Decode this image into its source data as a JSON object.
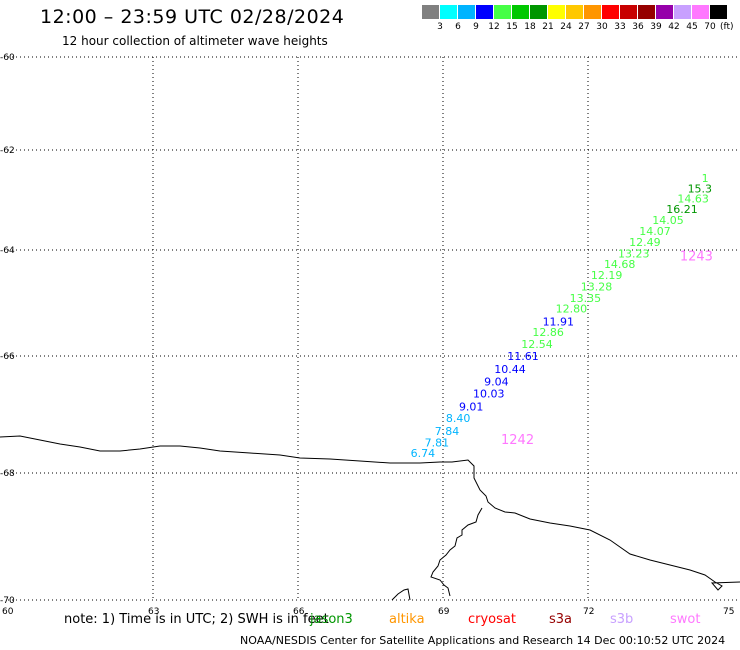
{
  "header": {
    "title": "12:00 – 23:59 UTC 02/28/2024",
    "subtitle": "12 hour collection of altimeter wave heights"
  },
  "legend": {
    "unit": "(ft)",
    "bins": [
      {
        "label": "",
        "color": "#808080"
      },
      {
        "label": "3",
        "color": "#00ffff"
      },
      {
        "label": "6",
        "color": "#00b4ff"
      },
      {
        "label": "9",
        "color": "#0000ff"
      },
      {
        "label": "12",
        "color": "#46ff46"
      },
      {
        "label": "15",
        "color": "#00c800"
      },
      {
        "label": "18",
        "color": "#009600"
      },
      {
        "label": "21",
        "color": "#ffff00"
      },
      {
        "label": "24",
        "color": "#ffc800"
      },
      {
        "label": "27",
        "color": "#ff9600"
      },
      {
        "label": "30",
        "color": "#ff0000"
      },
      {
        "label": "33",
        "color": "#c80000"
      },
      {
        "label": "36",
        "color": "#960000"
      },
      {
        "label": "39",
        "color": "#9600aa"
      },
      {
        "label": "42",
        "color": "#c8a0ff"
      },
      {
        "label": "45",
        "color": "#ff78ff"
      },
      {
        "label": "70",
        "color": "#000000"
      }
    ]
  },
  "map": {
    "lat_ticks": [
      "-60",
      "-62",
      "-64",
      "-66",
      "-68",
      "-70"
    ],
    "lon_ticks": [
      "60",
      "63",
      "66",
      "69",
      "72",
      "75"
    ],
    "track_labels": [
      {
        "id": "1242",
        "lon": 70.2,
        "lat": -67.5,
        "color": "#ff78ff"
      },
      {
        "id": "1243",
        "lon": 73.9,
        "lat": -64.2,
        "color": "#ff78ff"
      }
    ],
    "observations": [
      {
        "lon": 68.33,
        "lat": -67.73,
        "value": "6.74",
        "color": "#00b4ff"
      },
      {
        "lon": 68.62,
        "lat": -67.55,
        "value": "7.81",
        "color": "#00b4ff"
      },
      {
        "lon": 68.83,
        "lat": -67.35,
        "value": "7.84",
        "color": "#00b4ff"
      },
      {
        "lon": 69.06,
        "lat": -67.13,
        "value": "8.40",
        "color": "#00b4ff"
      },
      {
        "lon": 69.33,
        "lat": -66.93,
        "value": "9.01",
        "color": "#0000ff"
      },
      {
        "lon": 69.62,
        "lat": -66.71,
        "value": "10.03",
        "color": "#0000ff"
      },
      {
        "lon": 69.85,
        "lat": -66.5,
        "value": "9.04",
        "color": "#0000ff"
      },
      {
        "lon": 70.06,
        "lat": -66.29,
        "value": "10.44",
        "color": "#0000ff"
      },
      {
        "lon": 70.33,
        "lat": -66.07,
        "value": "11.61",
        "color": "#0000ff"
      },
      {
        "lon": 70.62,
        "lat": -65.85,
        "value": "12.54",
        "color": "#46ff46"
      },
      {
        "lon": 70.85,
        "lat": -65.62,
        "value": "12.86",
        "color": "#46ff46"
      },
      {
        "lon": 71.06,
        "lat": -65.42,
        "value": "11.91",
        "color": "#0000ff"
      },
      {
        "lon": 71.33,
        "lat": -65.18,
        "value": "12.80",
        "color": "#46ff46"
      },
      {
        "lon": 71.62,
        "lat": -64.98,
        "value": "13.35",
        "color": "#46ff46"
      },
      {
        "lon": 71.85,
        "lat": -64.76,
        "value": "13.28",
        "color": "#46ff46"
      },
      {
        "lon": 72.06,
        "lat": -64.55,
        "value": "12.19",
        "color": "#46ff46"
      },
      {
        "lon": 72.33,
        "lat": -64.34,
        "value": "14.68",
        "color": "#46ff46"
      },
      {
        "lon": 72.62,
        "lat": -64.14,
        "value": "13.23",
        "color": "#46ff46"
      },
      {
        "lon": 72.85,
        "lat": -63.92,
        "value": "12.49",
        "color": "#46ff46"
      },
      {
        "lon": 73.06,
        "lat": -63.7,
        "value": "14.07",
        "color": "#46ff46"
      },
      {
        "lon": 73.33,
        "lat": -63.48,
        "value": "14.05",
        "color": "#46ff46"
      },
      {
        "lon": 73.62,
        "lat": -63.26,
        "value": "16.21",
        "color": "#009600"
      },
      {
        "lon": 73.85,
        "lat": -63.05,
        "value": "14.63",
        "color": "#46ff46"
      },
      {
        "lon": 74.06,
        "lat": -62.85,
        "value": "15.3",
        "color": "#009600"
      },
      {
        "lon": 74.35,
        "lat": -62.64,
        "value": "1",
        "color": "#46ff46"
      }
    ]
  },
  "note": {
    "prefix": "note: 1) Time is in UTC; 2) SWH is in feet",
    "overlap_text": "jason3",
    "overlap_color": "#009600",
    "satellites": [
      {
        "name": "altika",
        "color": "#ff9600"
      },
      {
        "name": "cryosat",
        "color": "#ff0000"
      },
      {
        "name": "s3a",
        "color": "#960000"
      },
      {
        "name": "s3b",
        "color": "#c8a0ff"
      },
      {
        "name": "swot",
        "color": "#ff78ff"
      }
    ]
  },
  "footer": {
    "text": "NOAA/NESDIS Center for Satellite Applications and Research   14 Dec 00:10:52 UTC 2024"
  }
}
